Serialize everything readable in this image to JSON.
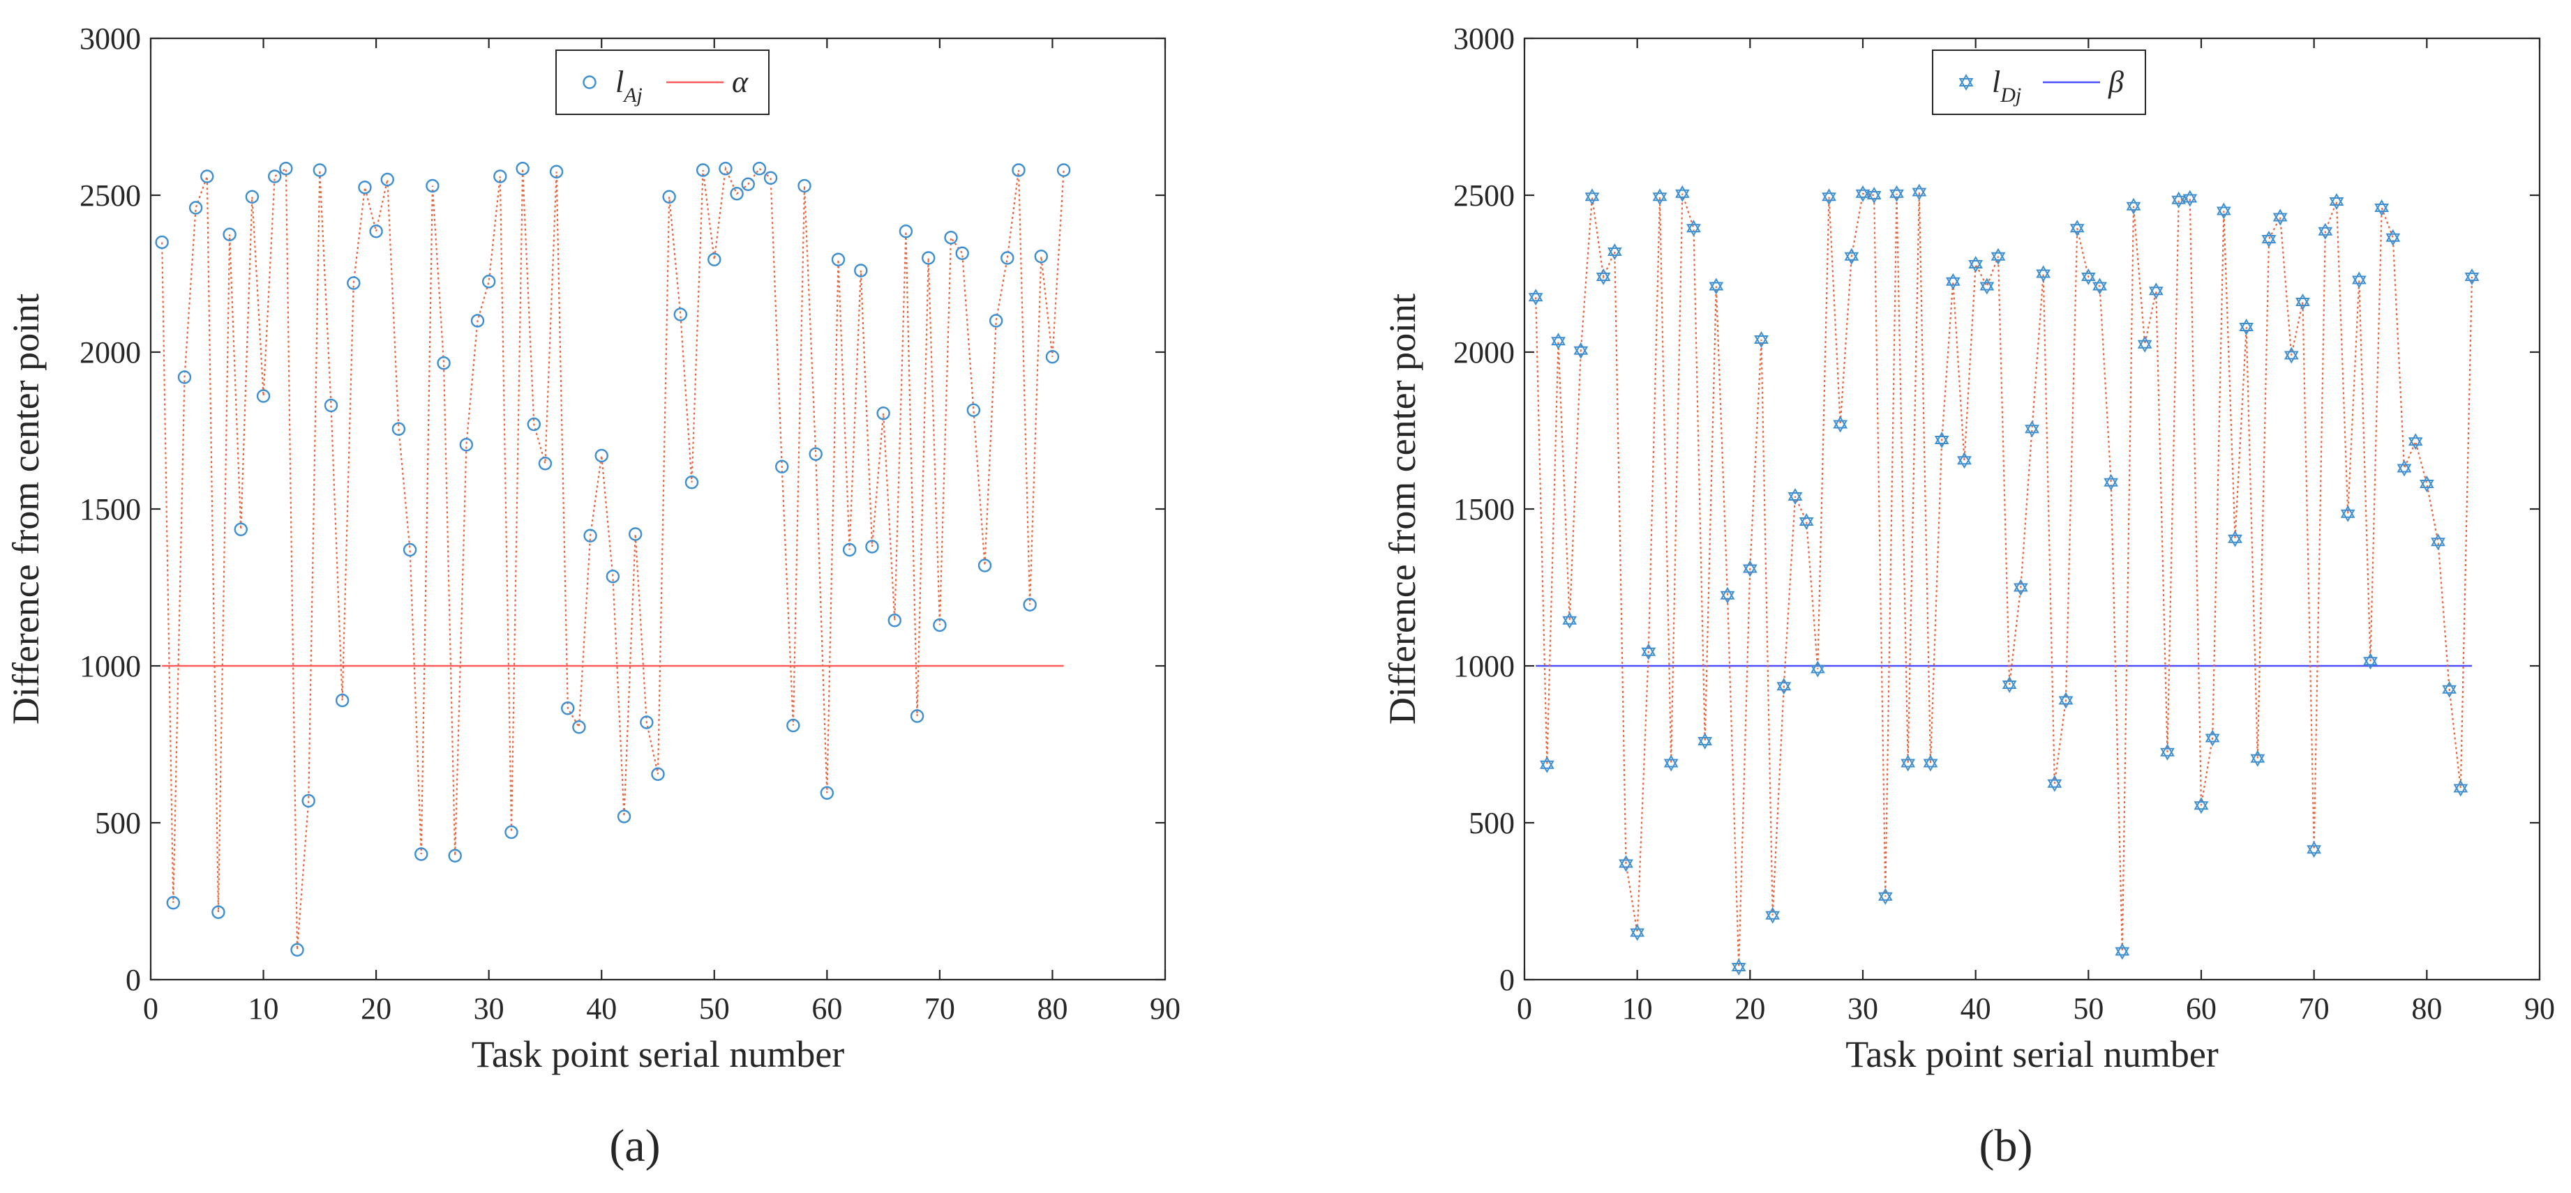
{
  "colors": {
    "marker": "#3f8fd0",
    "dotted_line": "#e8643c",
    "alpha_line": "#ff5a5a",
    "beta_line": "#4d4dff",
    "axis": "#262626"
  },
  "chart_data": [
    {
      "type": "scatter",
      "panel_label": "(a)",
      "title": "",
      "xlabel": "Task point serial number",
      "ylabel": "Difference from center point",
      "xlim": [
        0,
        90
      ],
      "ylim": [
        0,
        3000
      ],
      "xticks": [
        0,
        10,
        20,
        30,
        40,
        50,
        60,
        70,
        80,
        90
      ],
      "yticks": [
        0,
        500,
        1000,
        1500,
        2000,
        2500,
        3000
      ],
      "legend": {
        "location": "top-center",
        "entries": [
          {
            "name": "l",
            "subscript": "Aj",
            "kind": "marker",
            "marker": "circle"
          },
          {
            "name": "α",
            "subscript": "",
            "kind": "line"
          }
        ]
      },
      "series": [
        {
          "name": "l_Aj",
          "marker": "circle",
          "x": [
            1,
            2,
            3,
            4,
            5,
            6,
            7,
            8,
            9,
            10,
            11,
            12,
            13,
            14,
            15,
            16,
            17,
            18,
            19,
            20,
            21,
            22,
            23,
            24,
            25,
            26,
            27,
            28,
            29,
            30,
            31,
            32,
            33,
            34,
            35,
            36,
            37,
            38,
            39,
            40,
            41,
            42,
            43,
            44,
            45,
            46,
            47,
            48,
            49,
            50,
            51,
            52,
            53,
            54,
            55,
            56,
            57,
            58,
            59,
            60,
            61,
            62,
            63,
            64,
            65,
            66,
            67,
            68,
            69,
            70,
            71,
            72,
            73,
            74,
            75,
            76,
            77,
            78,
            79,
            80,
            81
          ],
          "values": [
            2350,
            245,
            1920,
            2460,
            2560,
            215,
            2375,
            1435,
            2495,
            1860,
            2560,
            2585,
            95,
            570,
            2580,
            1830,
            890,
            2220,
            2525,
            2385,
            2550,
            1755,
            1370,
            400,
            2530,
            1965,
            395,
            1705,
            2100,
            2225,
            2560,
            470,
            2585,
            1770,
            1645,
            2575,
            865,
            805,
            1415,
            1670,
            1285,
            520,
            1420,
            820,
            655,
            2495,
            2120,
            1585,
            2580,
            2295,
            2585,
            2505,
            2535,
            2585,
            2555,
            1635,
            810,
            2530,
            1675,
            595,
            2295,
            1370,
            2260,
            1380,
            1805,
            1145,
            2385,
            840,
            2300,
            1130,
            2365,
            2315,
            1815,
            1320,
            2100,
            2300,
            2580,
            1195,
            2305,
            1985,
            2580
          ]
        },
        {
          "name": "α",
          "kind": "constant",
          "x": [
            1,
            81
          ],
          "values": [
            1000,
            1000
          ]
        }
      ]
    },
    {
      "type": "scatter",
      "panel_label": "(b)",
      "title": "",
      "xlabel": "Task point serial number",
      "ylabel": "Difference from center point",
      "xlim": [
        0,
        90
      ],
      "ylim": [
        0,
        3000
      ],
      "xticks": [
        0,
        10,
        20,
        30,
        40,
        50,
        60,
        70,
        80,
        90
      ],
      "yticks": [
        0,
        500,
        1000,
        1500,
        2000,
        2500,
        3000
      ],
      "legend": {
        "location": "top-center",
        "entries": [
          {
            "name": "l",
            "subscript": "Dj",
            "kind": "marker",
            "marker": "hexagram"
          },
          {
            "name": "β",
            "subscript": "",
            "kind": "line"
          }
        ]
      },
      "series": [
        {
          "name": "l_Dj",
          "marker": "hexagram",
          "x": [
            1,
            2,
            3,
            4,
            5,
            6,
            7,
            8,
            9,
            10,
            11,
            12,
            13,
            14,
            15,
            16,
            17,
            18,
            19,
            20,
            21,
            22,
            23,
            24,
            25,
            26,
            27,
            28,
            29,
            30,
            31,
            32,
            33,
            34,
            35,
            36,
            37,
            38,
            39,
            40,
            41,
            42,
            43,
            44,
            45,
            46,
            47,
            48,
            49,
            50,
            51,
            52,
            53,
            54,
            55,
            56,
            57,
            58,
            59,
            60,
            61,
            62,
            63,
            64,
            65,
            66,
            67,
            68,
            69,
            70,
            71,
            72,
            73,
            74,
            75,
            76,
            77,
            78,
            79,
            80,
            81,
            82,
            83,
            84
          ],
          "values": [
            2175,
            685,
            2035,
            1145,
            2005,
            2495,
            2240,
            2320,
            370,
            150,
            1045,
            2495,
            690,
            2505,
            2395,
            760,
            2210,
            1225,
            40,
            1310,
            2040,
            205,
            935,
            1540,
            1460,
            990,
            2495,
            1770,
            2305,
            2505,
            2500,
            265,
            2505,
            690,
            2510,
            690,
            1720,
            2225,
            1655,
            2280,
            2210,
            2305,
            940,
            1250,
            1755,
            2250,
            625,
            890,
            2395,
            2240,
            2210,
            1585,
            90,
            2465,
            2025,
            2195,
            725,
            2485,
            2490,
            555,
            770,
            2450,
            1405,
            2080,
            705,
            2360,
            2430,
            1990,
            2160,
            415,
            2385,
            2480,
            1485,
            2230,
            1015,
            2460,
            2365,
            1630,
            1715,
            1580,
            1395,
            925,
            610,
            2240
          ]
        },
        {
          "name": "β",
          "kind": "constant",
          "x": [
            1,
            84
          ],
          "values": [
            1000,
            1000
          ]
        }
      ]
    }
  ]
}
